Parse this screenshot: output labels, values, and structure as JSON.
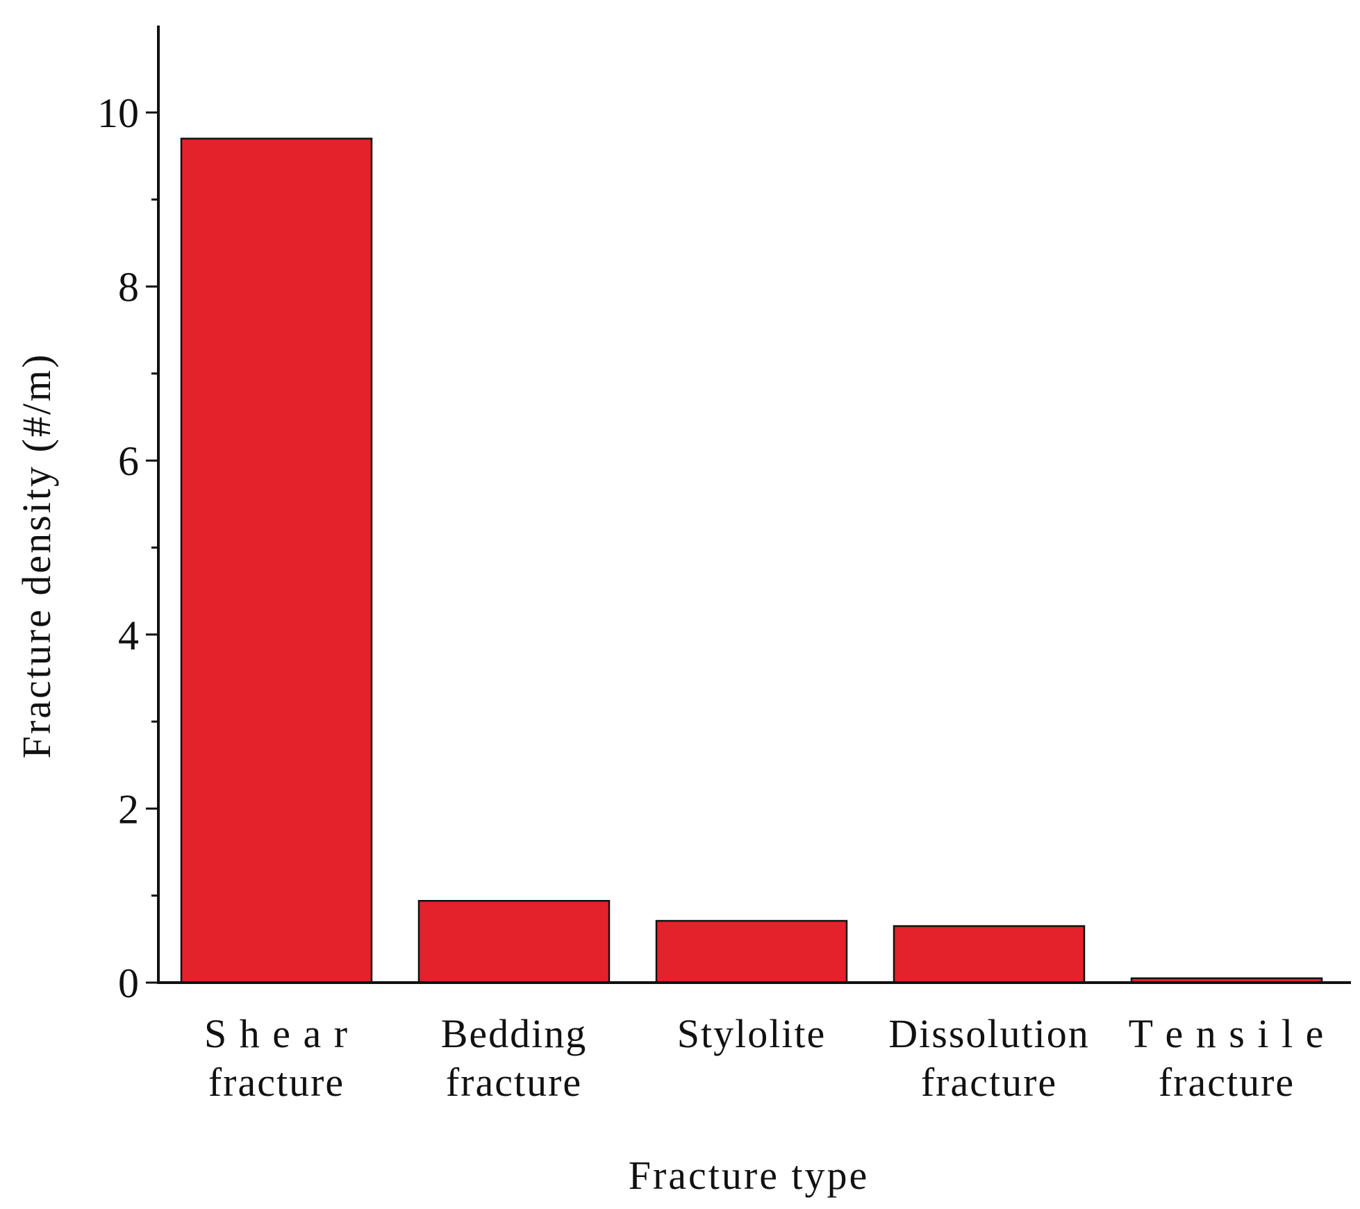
{
  "chart_data": {
    "type": "bar",
    "title": "",
    "xlabel": "Fracture type",
    "ylabel": "Fracture density (#/m)",
    "categories": [
      [
        "S h e a r",
        "fracture"
      ],
      [
        "Bedding",
        "fracture"
      ],
      [
        "Stylolite"
      ],
      [
        "Dissolution",
        "fracture"
      ],
      [
        "T e n s i l e",
        "fracture"
      ]
    ],
    "values": [
      9.7,
      0.94,
      0.71,
      0.65,
      0.05
    ],
    "ylim": [
      0,
      11
    ],
    "yticks": [
      0,
      2,
      4,
      6,
      8,
      10
    ],
    "yticks_minor": [
      1,
      3,
      5,
      7,
      9
    ],
    "bar_color": "#e3222b",
    "grid": false,
    "legend": "none"
  }
}
